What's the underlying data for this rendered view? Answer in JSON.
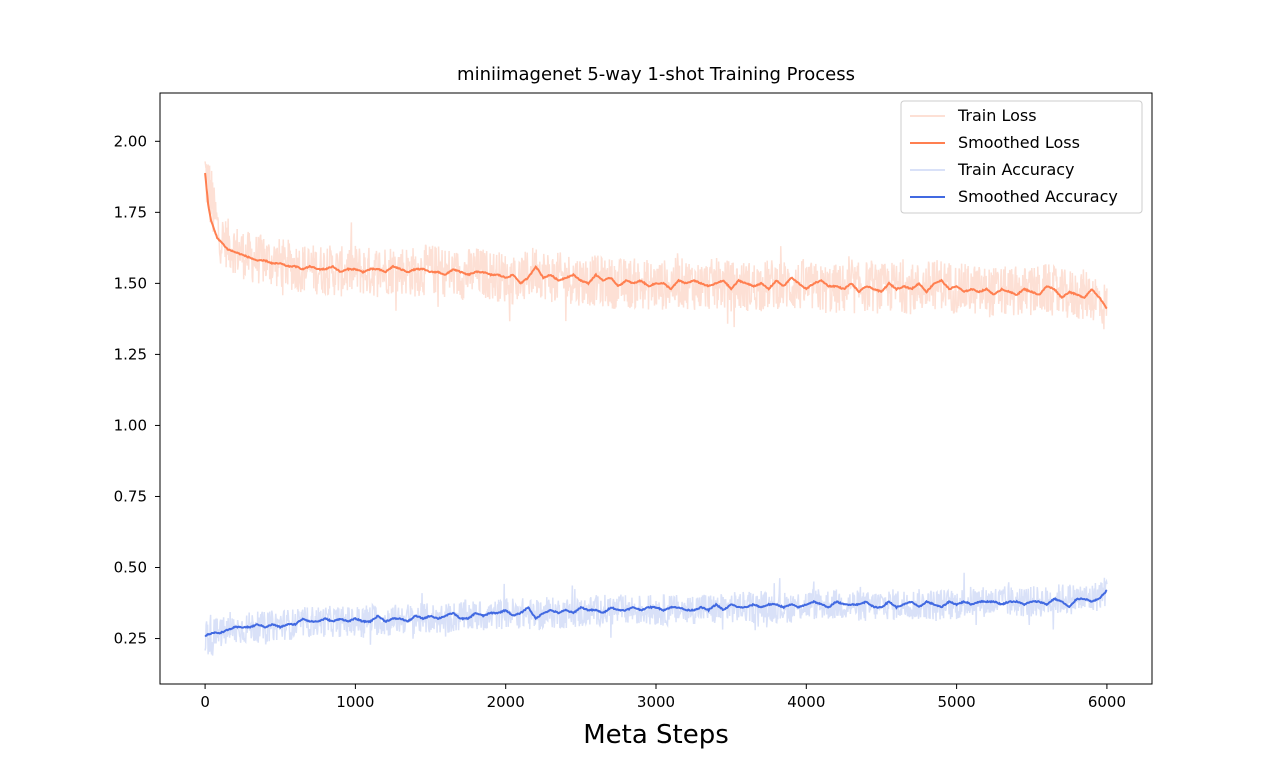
{
  "chart_data": {
    "type": "line",
    "title": "miniimagenet 5-way 1-shot Training Process",
    "xlabel": "Meta Steps",
    "ylabel": "",
    "xlim": [
      -300,
      6300
    ],
    "ylim": [
      0.09,
      2.17
    ],
    "xticks": [
      0,
      1000,
      2000,
      3000,
      4000,
      5000,
      6000
    ],
    "xtick_labels": [
      "0",
      "1000",
      "2000",
      "3000",
      "4000",
      "5000",
      "6000"
    ],
    "yticks": [
      0.25,
      0.5,
      0.75,
      1.0,
      1.25,
      1.5,
      1.75,
      2.0
    ],
    "ytick_labels": [
      "0.25",
      "0.50",
      "0.75",
      "1.00",
      "1.25",
      "1.50",
      "1.75",
      "2.00"
    ],
    "grid": false,
    "legend_position": "top-right",
    "series": [
      {
        "name": "Train Loss",
        "color": "#fde0d5",
        "style": "raw-noisy",
        "x": [
          0,
          100,
          200,
          300,
          400,
          500,
          600,
          700,
          800,
          900,
          1000,
          1100,
          1200,
          1300,
          1400,
          1500,
          1600,
          1700,
          1800,
          1900,
          2000,
          2100,
          2200,
          2300,
          2400,
          2500,
          2600,
          2700,
          2800,
          2900,
          3000,
          3100,
          3200,
          3300,
          3400,
          3500,
          3600,
          3700,
          3800,
          3900,
          4000,
          4100,
          4200,
          4300,
          4400,
          4500,
          4600,
          4700,
          4800,
          4900,
          5000,
          5100,
          5200,
          5300,
          5400,
          5500,
          5600,
          5700,
          5800,
          5900,
          6000
        ],
        "y": [
          1.89,
          1.66,
          1.62,
          1.59,
          1.58,
          1.57,
          1.56,
          1.55,
          1.55,
          1.54,
          1.55,
          1.54,
          1.55,
          1.55,
          1.54,
          1.55,
          1.54,
          1.53,
          1.54,
          1.53,
          1.52,
          1.51,
          1.55,
          1.52,
          1.52,
          1.51,
          1.51,
          1.5,
          1.5,
          1.5,
          1.49,
          1.5,
          1.5,
          1.49,
          1.5,
          1.49,
          1.49,
          1.49,
          1.5,
          1.49,
          1.49,
          1.48,
          1.48,
          1.48,
          1.49,
          1.48,
          1.49,
          1.48,
          1.49,
          1.5,
          1.48,
          1.48,
          1.47,
          1.47,
          1.47,
          1.47,
          1.48,
          1.46,
          1.46,
          1.46,
          1.41
        ],
        "spread": 0.09
      },
      {
        "name": "Smoothed Loss",
        "color": "#ff7f50",
        "style": "line",
        "x": [
          0,
          20,
          40,
          60,
          80,
          100,
          150,
          200,
          250,
          300,
          350,
          400,
          450,
          500,
          550,
          600,
          650,
          700,
          750,
          800,
          850,
          900,
          950,
          1000,
          1050,
          1100,
          1150,
          1200,
          1250,
          1300,
          1350,
          1400,
          1450,
          1500,
          1550,
          1600,
          1650,
          1700,
          1750,
          1800,
          1850,
          1900,
          1950,
          2000,
          2050,
          2100,
          2150,
          2200,
          2250,
          2300,
          2350,
          2400,
          2450,
          2500,
          2550,
          2600,
          2650,
          2700,
          2750,
          2800,
          2850,
          2900,
          2950,
          3000,
          3050,
          3100,
          3150,
          3200,
          3250,
          3300,
          3350,
          3400,
          3450,
          3500,
          3550,
          3600,
          3650,
          3700,
          3750,
          3800,
          3850,
          3900,
          3950,
          4000,
          4050,
          4100,
          4150,
          4200,
          4250,
          4300,
          4350,
          4400,
          4450,
          4500,
          4550,
          4600,
          4650,
          4700,
          4750,
          4800,
          4850,
          4900,
          4950,
          5000,
          5050,
          5100,
          5150,
          5200,
          5250,
          5300,
          5350,
          5400,
          5450,
          5500,
          5550,
          5600,
          5650,
          5700,
          5750,
          5800,
          5850,
          5900,
          5950,
          6000
        ],
        "y": [
          1.89,
          1.78,
          1.72,
          1.69,
          1.66,
          1.65,
          1.62,
          1.61,
          1.6,
          1.59,
          1.58,
          1.58,
          1.57,
          1.57,
          1.56,
          1.56,
          1.55,
          1.56,
          1.55,
          1.55,
          1.56,
          1.54,
          1.55,
          1.55,
          1.54,
          1.55,
          1.55,
          1.54,
          1.56,
          1.55,
          1.54,
          1.55,
          1.55,
          1.54,
          1.54,
          1.53,
          1.55,
          1.54,
          1.53,
          1.54,
          1.54,
          1.53,
          1.53,
          1.52,
          1.53,
          1.5,
          1.52,
          1.56,
          1.52,
          1.53,
          1.51,
          1.52,
          1.53,
          1.51,
          1.5,
          1.53,
          1.51,
          1.52,
          1.49,
          1.51,
          1.5,
          1.51,
          1.49,
          1.5,
          1.5,
          1.48,
          1.51,
          1.5,
          1.51,
          1.5,
          1.49,
          1.5,
          1.51,
          1.48,
          1.51,
          1.5,
          1.49,
          1.5,
          1.48,
          1.51,
          1.49,
          1.52,
          1.5,
          1.48,
          1.5,
          1.51,
          1.49,
          1.49,
          1.48,
          1.5,
          1.47,
          1.49,
          1.48,
          1.47,
          1.5,
          1.48,
          1.49,
          1.48,
          1.5,
          1.47,
          1.5,
          1.51,
          1.48,
          1.49,
          1.47,
          1.48,
          1.47,
          1.48,
          1.46,
          1.48,
          1.47,
          1.46,
          1.48,
          1.47,
          1.46,
          1.49,
          1.48,
          1.45,
          1.47,
          1.46,
          1.45,
          1.48,
          1.45,
          1.41
        ]
      },
      {
        "name": "Train Accuracy",
        "color": "#d9e1f8",
        "style": "raw-noisy",
        "x": [
          0,
          100,
          200,
          300,
          400,
          500,
          600,
          700,
          800,
          900,
          1000,
          1100,
          1200,
          1300,
          1400,
          1500,
          1600,
          1700,
          1800,
          1900,
          2000,
          2100,
          2200,
          2300,
          2400,
          2500,
          2600,
          2700,
          2800,
          2900,
          3000,
          3100,
          3200,
          3300,
          3400,
          3500,
          3600,
          3700,
          3800,
          3900,
          4000,
          4100,
          4200,
          4300,
          4400,
          4500,
          4600,
          4700,
          4800,
          4900,
          5000,
          5100,
          5200,
          5300,
          5400,
          5500,
          5600,
          5700,
          5800,
          5900,
          6000
        ],
        "y": [
          0.26,
          0.27,
          0.28,
          0.29,
          0.29,
          0.3,
          0.3,
          0.31,
          0.31,
          0.31,
          0.31,
          0.32,
          0.31,
          0.32,
          0.32,
          0.32,
          0.32,
          0.33,
          0.33,
          0.33,
          0.34,
          0.34,
          0.33,
          0.34,
          0.34,
          0.34,
          0.35,
          0.35,
          0.35,
          0.35,
          0.35,
          0.35,
          0.35,
          0.36,
          0.35,
          0.36,
          0.36,
          0.36,
          0.36,
          0.36,
          0.37,
          0.37,
          0.37,
          0.37,
          0.36,
          0.37,
          0.37,
          0.37,
          0.37,
          0.37,
          0.37,
          0.38,
          0.38,
          0.38,
          0.38,
          0.38,
          0.38,
          0.39,
          0.39,
          0.39,
          0.42
        ],
        "spread": 0.055
      },
      {
        "name": "Smoothed Accuracy",
        "color": "#4169e1",
        "style": "line",
        "x": [
          0,
          50,
          100,
          150,
          200,
          250,
          300,
          350,
          400,
          450,
          500,
          550,
          600,
          650,
          700,
          750,
          800,
          850,
          900,
          950,
          1000,
          1050,
          1100,
          1150,
          1200,
          1250,
          1300,
          1350,
          1400,
          1450,
          1500,
          1550,
          1600,
          1650,
          1700,
          1750,
          1800,
          1850,
          1900,
          1950,
          2000,
          2050,
          2100,
          2150,
          2200,
          2250,
          2300,
          2350,
          2400,
          2450,
          2500,
          2550,
          2600,
          2650,
          2700,
          2750,
          2800,
          2850,
          2900,
          2950,
          3000,
          3050,
          3100,
          3150,
          3200,
          3250,
          3300,
          3350,
          3400,
          3450,
          3500,
          3550,
          3600,
          3650,
          3700,
          3750,
          3800,
          3850,
          3900,
          3950,
          4000,
          4050,
          4100,
          4150,
          4200,
          4250,
          4300,
          4350,
          4400,
          4450,
          4500,
          4550,
          4600,
          4650,
          4700,
          4750,
          4800,
          4850,
          4900,
          4950,
          5000,
          5050,
          5100,
          5150,
          5200,
          5250,
          5300,
          5350,
          5400,
          5450,
          5500,
          5550,
          5600,
          5650,
          5700,
          5750,
          5800,
          5850,
          5900,
          5950,
          6000
        ],
        "y": [
          0.26,
          0.27,
          0.27,
          0.28,
          0.29,
          0.29,
          0.29,
          0.3,
          0.29,
          0.3,
          0.29,
          0.3,
          0.3,
          0.32,
          0.31,
          0.31,
          0.32,
          0.31,
          0.32,
          0.31,
          0.32,
          0.31,
          0.31,
          0.33,
          0.31,
          0.32,
          0.32,
          0.31,
          0.33,
          0.32,
          0.33,
          0.32,
          0.33,
          0.34,
          0.32,
          0.32,
          0.34,
          0.33,
          0.34,
          0.34,
          0.35,
          0.33,
          0.34,
          0.36,
          0.32,
          0.34,
          0.35,
          0.34,
          0.35,
          0.34,
          0.36,
          0.35,
          0.35,
          0.34,
          0.36,
          0.35,
          0.35,
          0.36,
          0.35,
          0.36,
          0.36,
          0.35,
          0.36,
          0.36,
          0.35,
          0.35,
          0.36,
          0.35,
          0.37,
          0.35,
          0.37,
          0.36,
          0.36,
          0.37,
          0.36,
          0.37,
          0.37,
          0.36,
          0.37,
          0.36,
          0.37,
          0.38,
          0.37,
          0.36,
          0.38,
          0.37,
          0.37,
          0.37,
          0.38,
          0.36,
          0.36,
          0.38,
          0.36,
          0.37,
          0.38,
          0.36,
          0.38,
          0.37,
          0.36,
          0.38,
          0.37,
          0.38,
          0.37,
          0.38,
          0.38,
          0.38,
          0.37,
          0.38,
          0.38,
          0.37,
          0.38,
          0.38,
          0.37,
          0.39,
          0.38,
          0.36,
          0.39,
          0.39,
          0.38,
          0.39,
          0.42
        ]
      }
    ]
  }
}
